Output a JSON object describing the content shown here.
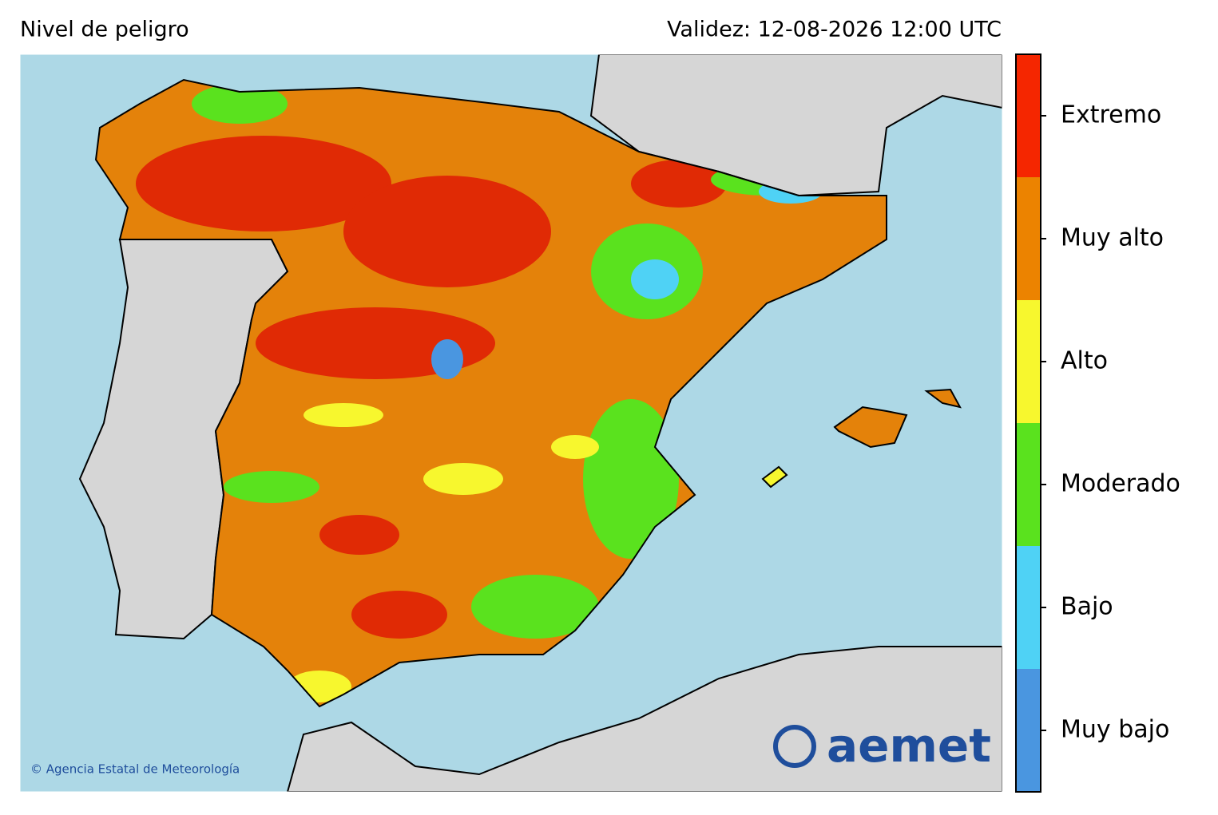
{
  "header": {
    "title": "Nivel de peligro",
    "validity": "Validez: 12-08-2026 12:00 UTC"
  },
  "legend": {
    "levels": [
      {
        "label": "Muy bajo",
        "color": "#4a96e0"
      },
      {
        "label": "Bajo",
        "color": "#4fd2f5"
      },
      {
        "label": "Moderado",
        "color": "#5ae21e"
      },
      {
        "label": "Alto",
        "color": "#f7f72e"
      },
      {
        "label": "Muy alto",
        "color": "#ec8300"
      },
      {
        "label": "Extremo",
        "color": "#f52600"
      }
    ]
  },
  "credit": "© Agencia Estatal de Meteorología",
  "logo": "aemet"
}
